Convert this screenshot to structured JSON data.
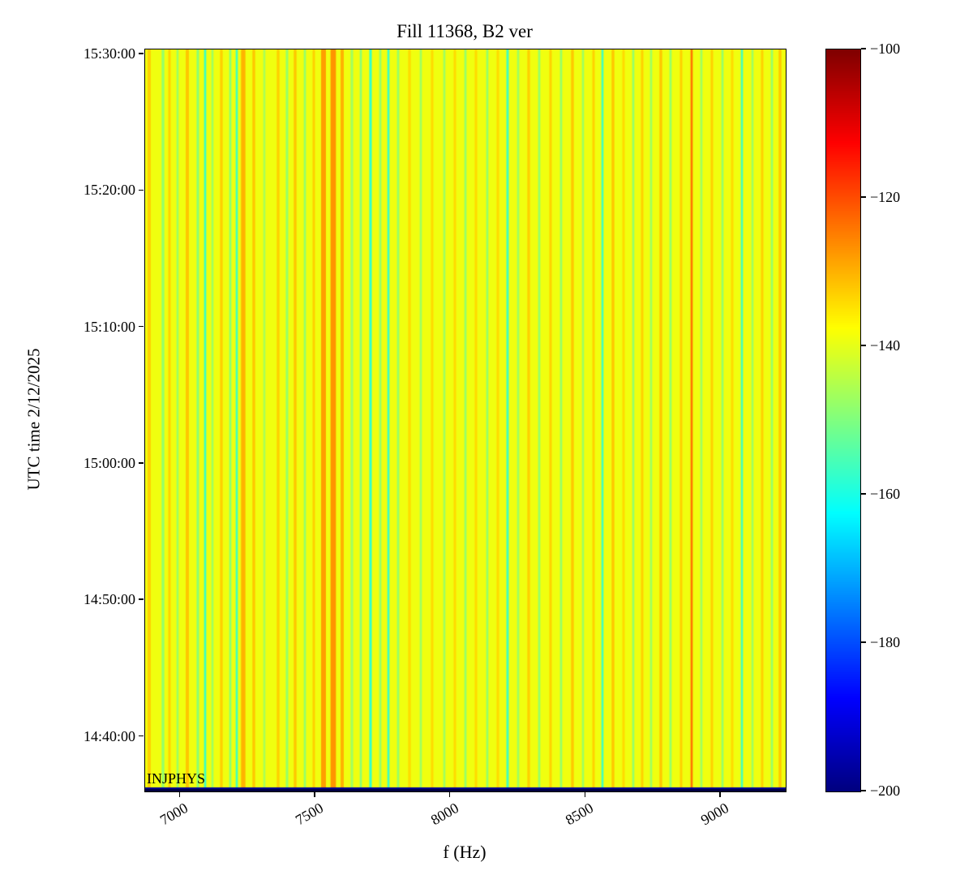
{
  "figure": {
    "title": "Fill 11368, B2 ver",
    "xlabel": "f (Hz)",
    "ylabel": "UTC time 2/12/2025",
    "annotation": "INJPHYS"
  },
  "chart_data": {
    "type": "heatmap",
    "title": "Fill 11368, B2 ver",
    "xlabel": "f (Hz)",
    "ylabel": "UTC time 2/12/2025",
    "annotation": "INJPHYS",
    "colormap": "jet",
    "clim_db": [
      -200,
      -100
    ],
    "x_range_hz": [
      6870,
      9240
    ],
    "x_tick_values_hz": [
      7000,
      7500,
      8000,
      8500,
      9000
    ],
    "x_tick_labels": [
      "7000",
      "7500",
      "8000",
      "8500",
      "9000"
    ],
    "y_tick_labels": [
      "15:30:00",
      "15:20:00",
      "15:10:00",
      "15:00:00",
      "14:50:00",
      "14:40:00"
    ],
    "y_axis_note": "time increases upward; rows span approx 14:36 to 15:30 UTC",
    "colorbar_tick_values": [
      -100,
      -120,
      -140,
      -160,
      -180,
      -200
    ],
    "colorbar_tick_labels": [
      "−100",
      "−120",
      "−140",
      "−160",
      "−180",
      "−200"
    ],
    "background_value_db": -139,
    "bottom_band_value_db": -198,
    "pattern": "vertical frequency stripes, constant over time",
    "stripes_db": [
      {
        "f": 6885,
        "w": 12,
        "v": -133
      },
      {
        "f": 6936,
        "w": 10,
        "v": -148
      },
      {
        "f": 6960,
        "w": 9,
        "v": -133
      },
      {
        "f": 6990,
        "w": 8,
        "v": -147
      },
      {
        "f": 7026,
        "w": 12,
        "v": -132
      },
      {
        "f": 7065,
        "w": 9,
        "v": -149
      },
      {
        "f": 7092,
        "w": 8,
        "v": -157
      },
      {
        "f": 7119,
        "w": 8,
        "v": -147
      },
      {
        "f": 7152,
        "w": 10,
        "v": -133
      },
      {
        "f": 7185,
        "w": 8,
        "v": -149
      },
      {
        "f": 7209,
        "w": 8,
        "v": -156
      },
      {
        "f": 7233,
        "w": 16,
        "v": -130
      },
      {
        "f": 7272,
        "w": 10,
        "v": -132
      },
      {
        "f": 7311,
        "w": 8,
        "v": -146
      },
      {
        "f": 7362,
        "w": 10,
        "v": -133
      },
      {
        "f": 7395,
        "w": 9,
        "v": -148
      },
      {
        "f": 7425,
        "w": 10,
        "v": -132
      },
      {
        "f": 7461,
        "w": 8,
        "v": -148
      },
      {
        "f": 7494,
        "w": 9,
        "v": -133
      },
      {
        "f": 7530,
        "w": 18,
        "v": -128
      },
      {
        "f": 7566,
        "w": 20,
        "v": -127
      },
      {
        "f": 7599,
        "w": 12,
        "v": -130
      },
      {
        "f": 7635,
        "w": 9,
        "v": -147
      },
      {
        "f": 7668,
        "w": 8,
        "v": -149
      },
      {
        "f": 7704,
        "w": 9,
        "v": -158
      },
      {
        "f": 7740,
        "w": 8,
        "v": -148
      },
      {
        "f": 7770,
        "w": 8,
        "v": -157
      },
      {
        "f": 7806,
        "w": 8,
        "v": -148
      },
      {
        "f": 7848,
        "w": 10,
        "v": -134
      },
      {
        "f": 7890,
        "w": 8,
        "v": -147
      },
      {
        "f": 7932,
        "w": 9,
        "v": -134
      },
      {
        "f": 7977,
        "w": 8,
        "v": -147
      },
      {
        "f": 8016,
        "w": 9,
        "v": -134
      },
      {
        "f": 8055,
        "w": 8,
        "v": -148
      },
      {
        "f": 8094,
        "w": 9,
        "v": -134
      },
      {
        "f": 8136,
        "w": 8,
        "v": -148
      },
      {
        "f": 8175,
        "w": 9,
        "v": -134
      },
      {
        "f": 8211,
        "w": 9,
        "v": -156
      },
      {
        "f": 8250,
        "w": 8,
        "v": -147
      },
      {
        "f": 8289,
        "w": 10,
        "v": -133
      },
      {
        "f": 8328,
        "w": 8,
        "v": -148
      },
      {
        "f": 8370,
        "w": 9,
        "v": -133
      },
      {
        "f": 8409,
        "w": 8,
        "v": -148
      },
      {
        "f": 8451,
        "w": 10,
        "v": -132
      },
      {
        "f": 8490,
        "w": 8,
        "v": -147
      },
      {
        "f": 8529,
        "w": 9,
        "v": -133
      },
      {
        "f": 8562,
        "w": 8,
        "v": -156
      },
      {
        "f": 8601,
        "w": 10,
        "v": -132
      },
      {
        "f": 8640,
        "w": 9,
        "v": -134
      },
      {
        "f": 8676,
        "w": 8,
        "v": -148
      },
      {
        "f": 8709,
        "w": 9,
        "v": -133
      },
      {
        "f": 8742,
        "w": 8,
        "v": -147
      },
      {
        "f": 8778,
        "w": 10,
        "v": -132
      },
      {
        "f": 8814,
        "w": 8,
        "v": -148
      },
      {
        "f": 8853,
        "w": 9,
        "v": -133
      },
      {
        "f": 8892,
        "w": 8,
        "v": -124
      },
      {
        "f": 8928,
        "w": 8,
        "v": -147
      },
      {
        "f": 8967,
        "w": 9,
        "v": -133
      },
      {
        "f": 9006,
        "w": 8,
        "v": -148
      },
      {
        "f": 9042,
        "w": 9,
        "v": -134
      },
      {
        "f": 9078,
        "w": 8,
        "v": -156
      },
      {
        "f": 9117,
        "w": 8,
        "v": -147
      },
      {
        "f": 9153,
        "w": 9,
        "v": -133
      },
      {
        "f": 9189,
        "w": 8,
        "v": -148
      },
      {
        "f": 9219,
        "w": 10,
        "v": -132
      }
    ]
  }
}
